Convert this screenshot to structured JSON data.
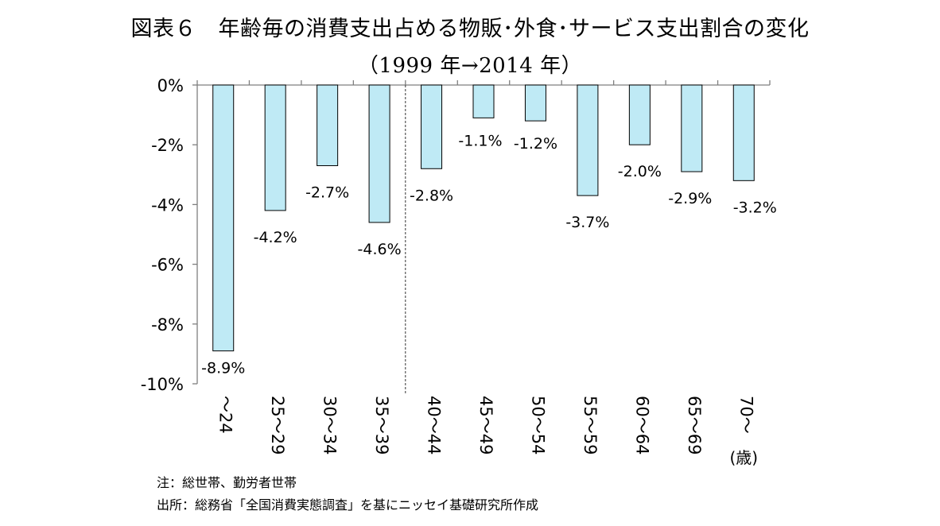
{
  "title": "図表６　年齢毎の消費支出占める物販･外食･サービス支出割合の変化",
  "subtitle": "（1999 年→2014 年）",
  "notes": {
    "note": "注：総世帯、勤労者世帯",
    "source": "出所：総務省「全国消費実態調査」を基にニッセイ基礎研究所作成"
  },
  "colors": {
    "bar_fill": "#bfeaf5",
    "bar_stroke": "#000000",
    "axis": "#7f7f7f"
  },
  "chart_data": {
    "type": "bar",
    "categories": [
      "～24",
      "25～29",
      "30～34",
      "35～39",
      "40～44",
      "45～49",
      "50～54",
      "55～59",
      "60～64",
      "65～69",
      "70～"
    ],
    "x_unit_label": "(歳)",
    "values": [
      -8.9,
      -4.2,
      -2.7,
      -4.6,
      -2.8,
      -1.1,
      -1.2,
      -3.7,
      -2.0,
      -2.9,
      -3.2
    ],
    "data_labels": [
      "-8.9%",
      "-4.2%",
      "-2.7%",
      "-4.6%",
      "-2.8%",
      "-1.1%",
      "-1.2%",
      "-3.7%",
      "-2.0%",
      "-2.9%",
      "-3.2%"
    ],
    "ylim": [
      -10,
      0
    ],
    "yticks": [
      0,
      -2,
      -4,
      -6,
      -8,
      -10
    ],
    "ytick_labels": [
      "0%",
      "-2%",
      "-4%",
      "-6%",
      "-8%",
      "-10%"
    ],
    "divider_after_category": "35～39",
    "grid": false,
    "legend": "none"
  }
}
